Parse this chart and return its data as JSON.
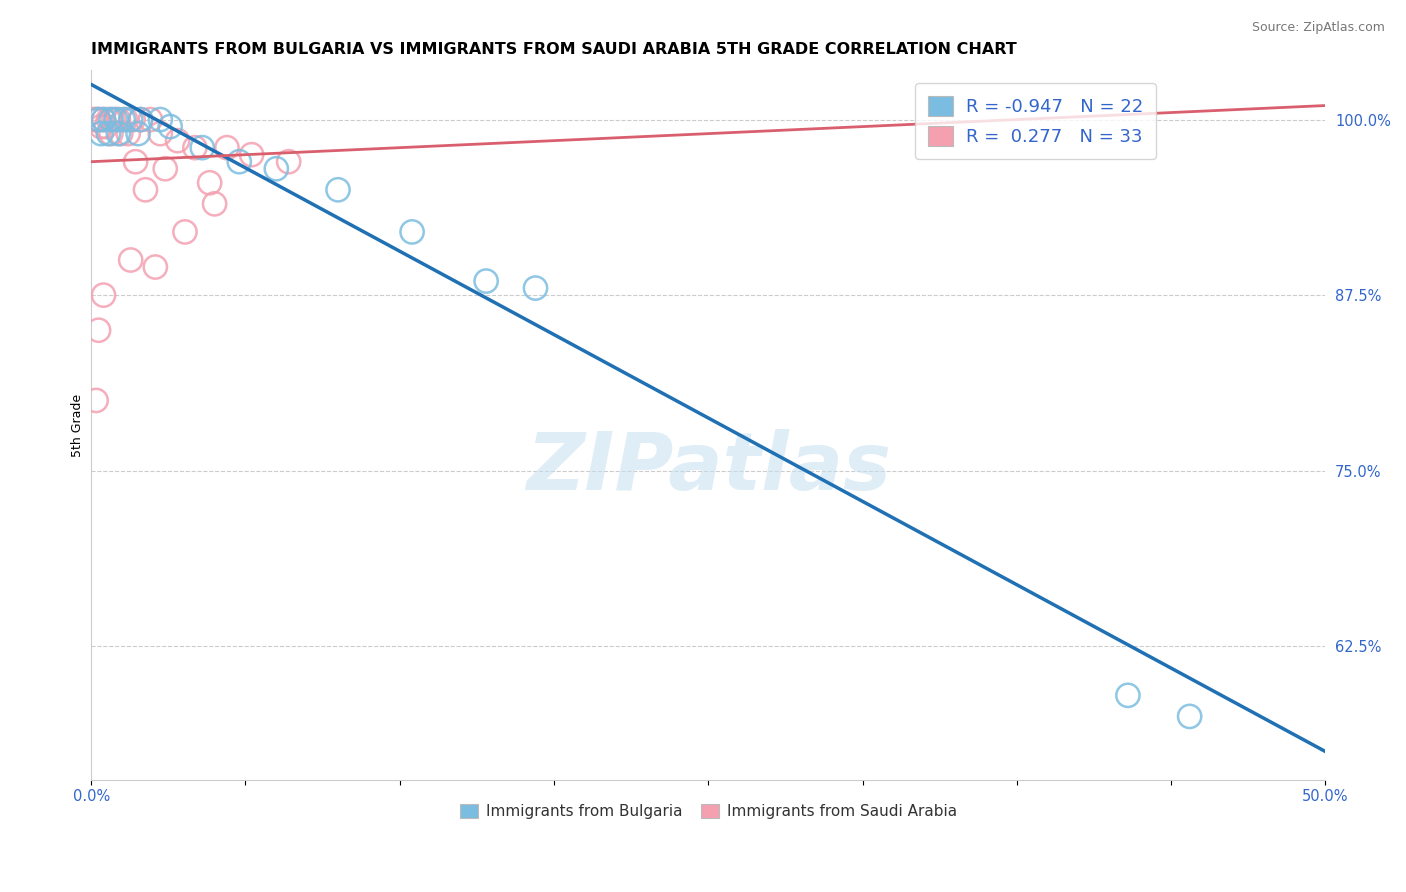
{
  "title": "IMMIGRANTS FROM BULGARIA VS IMMIGRANTS FROM SAUDI ARABIA 5TH GRADE CORRELATION CHART",
  "source": "Source: ZipAtlas.com",
  "legend_bottom_labels": [
    "Immigrants from Bulgaria",
    "Immigrants from Saudi Arabia"
  ],
  "ylabel": "5th Grade",
  "watermark": "ZIPatlas",
  "xlim": [
    0.0,
    50.0
  ],
  "ylim": [
    53.0,
    103.5
  ],
  "xticks": [
    0.0,
    6.25,
    12.5,
    18.75,
    25.0,
    31.25,
    37.5,
    43.75,
    50.0
  ],
  "xtick_labels_show": [
    "0.0%",
    "",
    "",
    "",
    "",
    "",
    "",
    "",
    "50.0%"
  ],
  "yticks_right": [
    62.5,
    75.0,
    87.5,
    100.0
  ],
  "ytick_labels_right": [
    "62.5%",
    "75.0%",
    "87.5%",
    "100.0%"
  ],
  "blue_R": -0.947,
  "blue_N": 22,
  "pink_R": 0.277,
  "pink_N": 33,
  "blue_color": "#7bbde0",
  "pink_color": "#f4a0b0",
  "blue_line_color": "#2070b4",
  "pink_line_color": "#d95f6e",
  "blue_scatter": [
    [
      0.3,
      100.0
    ],
    [
      0.5,
      100.0
    ],
    [
      0.8,
      100.0
    ],
    [
      1.0,
      100.0
    ],
    [
      1.3,
      100.0
    ],
    [
      1.6,
      100.0
    ],
    [
      2.0,
      100.0
    ],
    [
      2.8,
      100.0
    ],
    [
      0.4,
      99.0
    ],
    [
      0.7,
      99.0
    ],
    [
      1.1,
      99.0
    ],
    [
      1.9,
      99.0
    ],
    [
      3.2,
      99.5
    ],
    [
      4.5,
      98.0
    ],
    [
      6.0,
      97.0
    ],
    [
      7.5,
      96.5
    ],
    [
      10.0,
      95.0
    ],
    [
      13.0,
      92.0
    ],
    [
      16.0,
      88.5
    ],
    [
      18.0,
      88.0
    ],
    [
      42.0,
      59.0
    ],
    [
      44.5,
      57.5
    ]
  ],
  "pink_scatter": [
    [
      0.1,
      100.0
    ],
    [
      0.2,
      100.0
    ],
    [
      0.3,
      100.0
    ],
    [
      0.5,
      100.0
    ],
    [
      0.7,
      100.0
    ],
    [
      0.9,
      100.0
    ],
    [
      1.1,
      100.0
    ],
    [
      1.4,
      100.0
    ],
    [
      1.7,
      100.0
    ],
    [
      2.0,
      100.0
    ],
    [
      2.4,
      100.0
    ],
    [
      0.4,
      99.5
    ],
    [
      0.6,
      99.5
    ],
    [
      0.8,
      99.0
    ],
    [
      1.2,
      99.0
    ],
    [
      1.5,
      99.0
    ],
    [
      2.8,
      99.0
    ],
    [
      3.5,
      98.5
    ],
    [
      4.2,
      98.0
    ],
    [
      5.5,
      98.0
    ],
    [
      6.5,
      97.5
    ],
    [
      8.0,
      97.0
    ],
    [
      1.8,
      97.0
    ],
    [
      3.0,
      96.5
    ],
    [
      4.8,
      95.5
    ],
    [
      2.2,
      95.0
    ],
    [
      5.0,
      94.0
    ],
    [
      3.8,
      92.0
    ],
    [
      1.6,
      90.0
    ],
    [
      2.6,
      89.5
    ],
    [
      0.5,
      87.5
    ],
    [
      0.3,
      85.0
    ],
    [
      0.2,
      80.0
    ]
  ],
  "blue_trend_x": [
    0.0,
    50.0
  ],
  "blue_trend_y": [
    102.5,
    55.0
  ],
  "pink_trend_x": [
    0.0,
    50.0
  ],
  "pink_trend_y": [
    97.0,
    101.0
  ],
  "background_color": "#ffffff",
  "grid_color": "#cccccc",
  "title_fontsize": 11.5,
  "axis_label_fontsize": 9,
  "tick_fontsize": 10.5,
  "legend_fontsize": 13
}
